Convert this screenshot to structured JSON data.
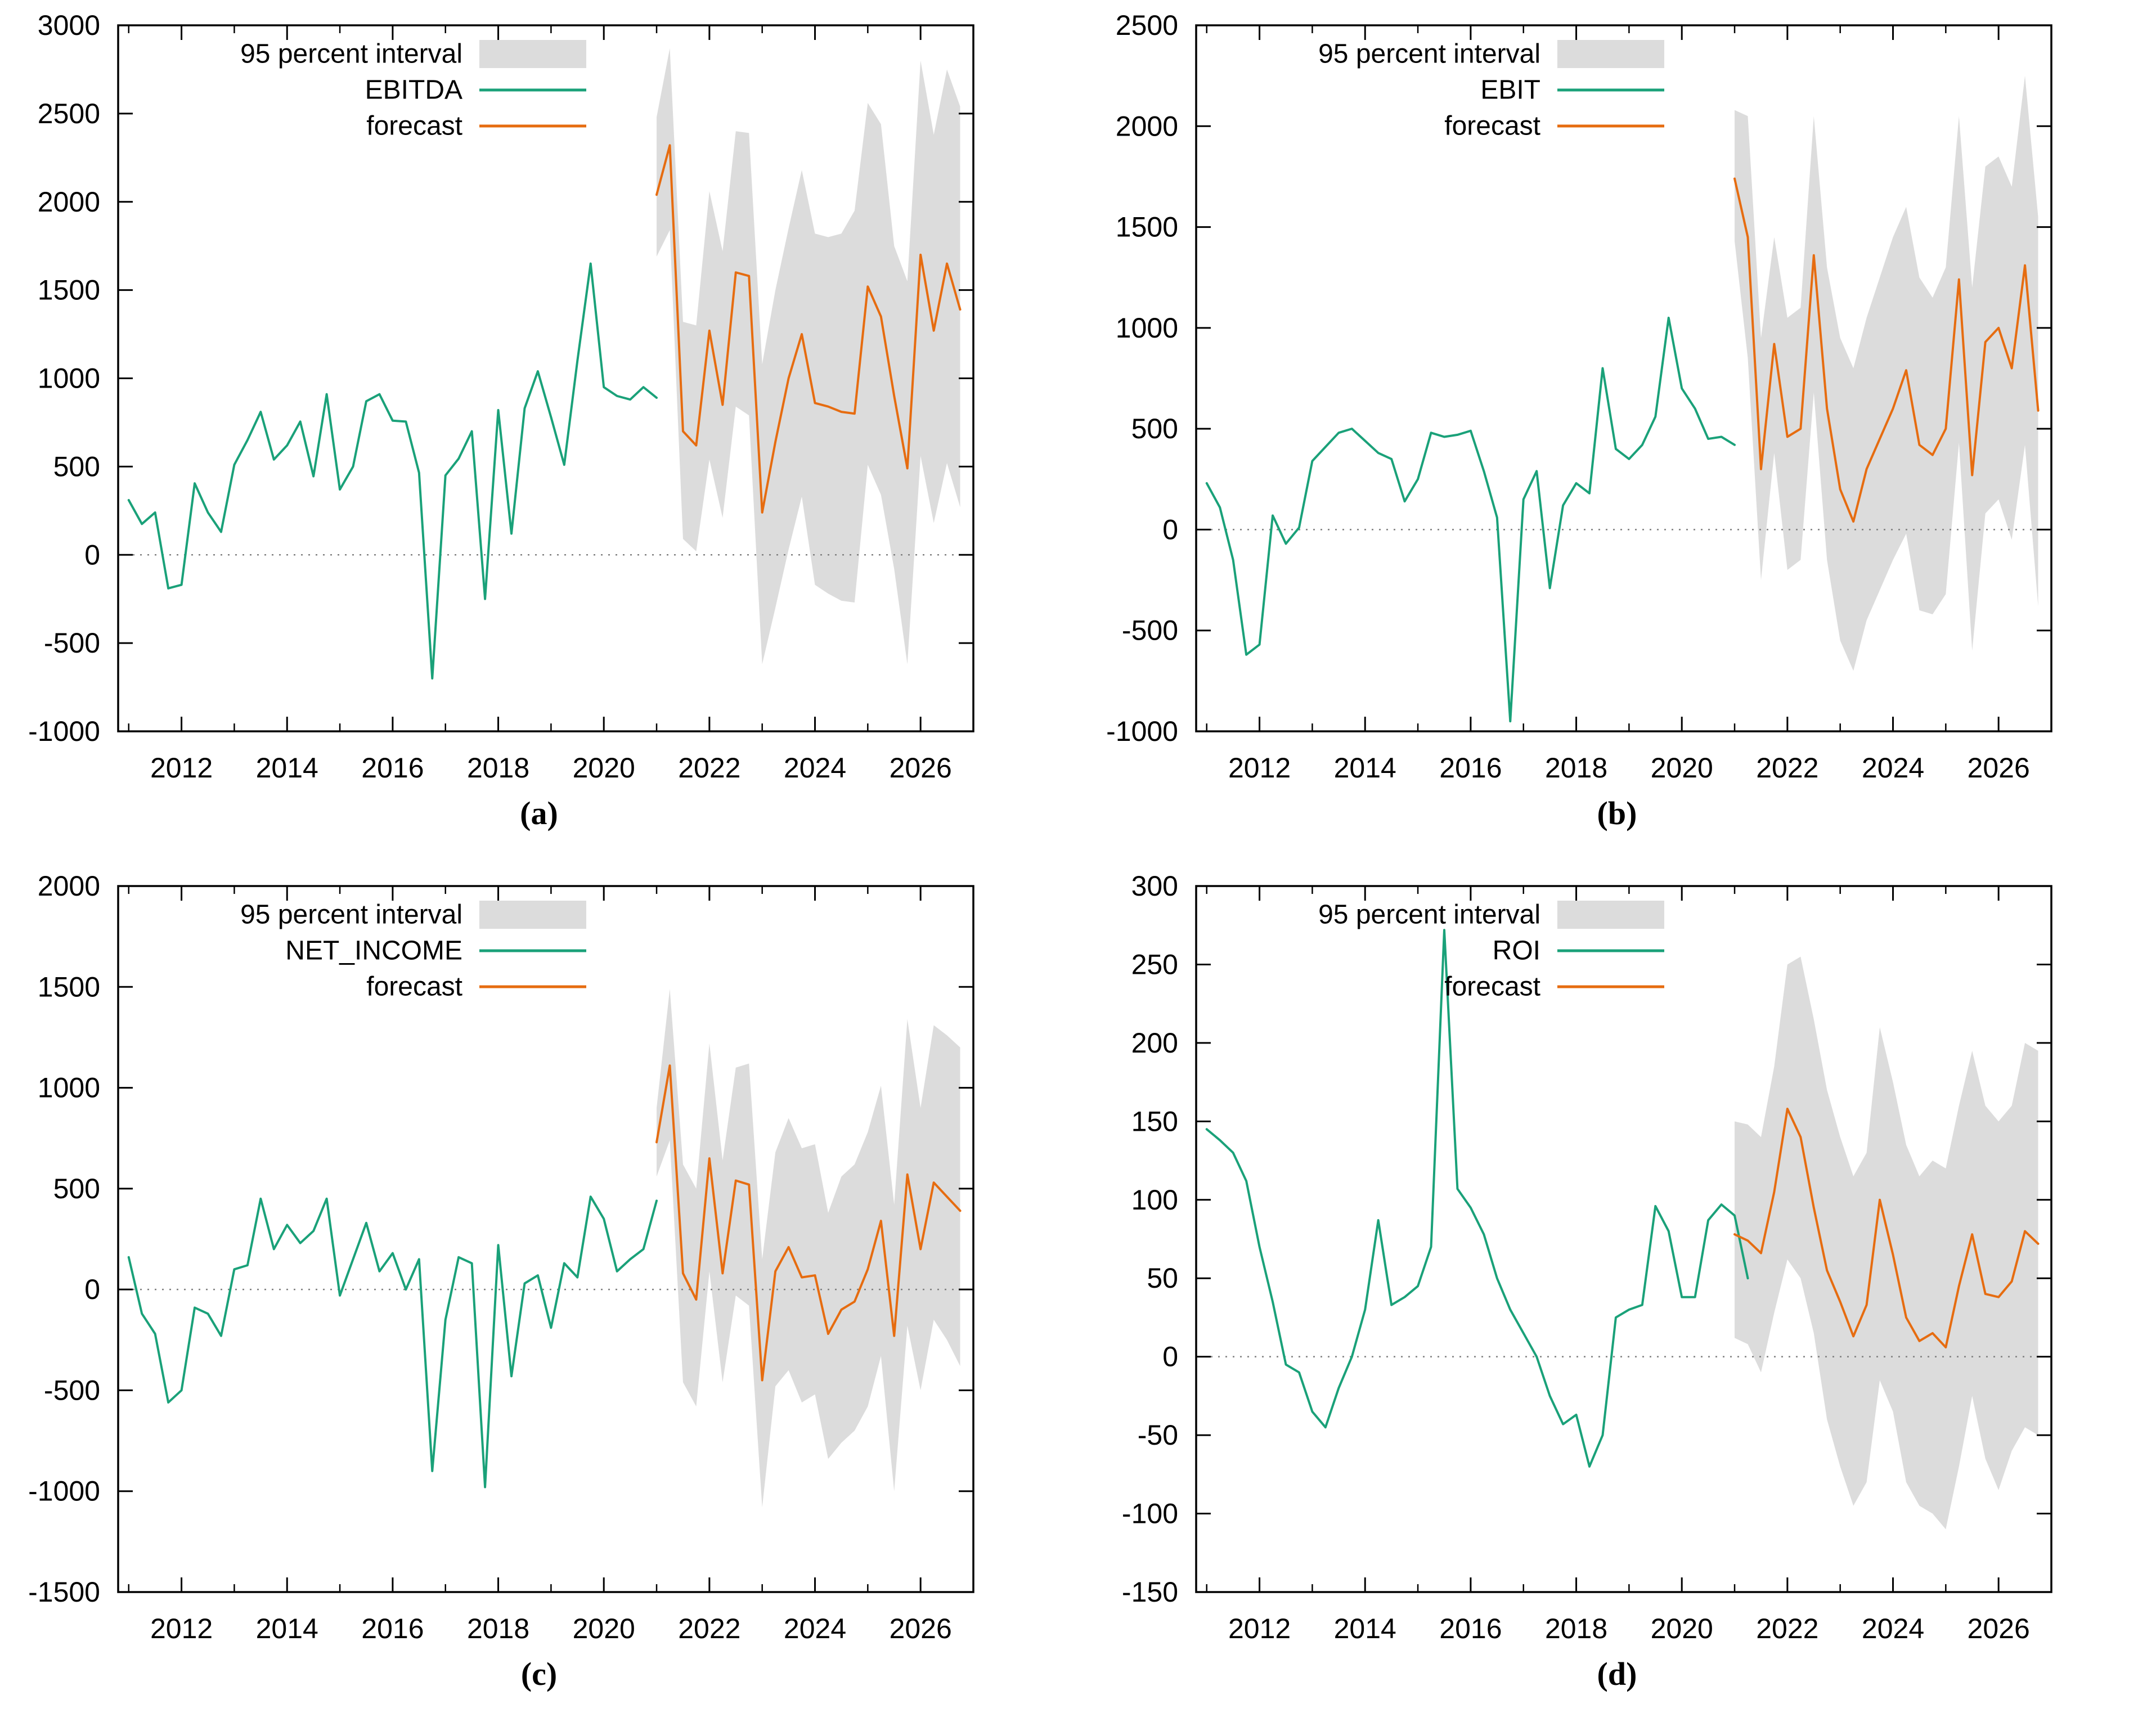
{
  "figure": {
    "background": "#ffffff"
  },
  "colors": {
    "history": "#1aa179",
    "forecast": "#e66c10",
    "band": "#dcdcdc",
    "axis": "#000000",
    "zero_line": "#808080",
    "text": "#000000"
  },
  "chart_data": [
    {
      "panel": "a",
      "type": "line",
      "caption": "(a)",
      "interval_label": "95 percent interval",
      "series_label": "EBITDA",
      "forecast_label": "forecast",
      "x_tick_labels": [
        "2012",
        "2014",
        "2016",
        "2018",
        "2020",
        "2022",
        "2024",
        "2026"
      ],
      "x_range": [
        2010.8,
        2027.0
      ],
      "ylim": [
        -1000,
        3000
      ],
      "y_step": 500,
      "x_start": 2011.0,
      "x_step": 0.25,
      "history": [
        310,
        175,
        240,
        -190,
        -170,
        405,
        240,
        130,
        510,
        650,
        810,
        540,
        620,
        755,
        445,
        910,
        370,
        500,
        870,
        910,
        760,
        755,
        465,
        -700,
        450,
        545,
        700,
        -250,
        820,
        120,
        830,
        1040,
        780,
        510,
        1100,
        1650,
        950,
        900,
        880,
        950,
        890
      ],
      "forecast_x_start": 2021.0,
      "forecast": [
        2040,
        2320,
        700,
        620,
        1270,
        850,
        1600,
        1580,
        240,
        640,
        1000,
        1250,
        860,
        840,
        810,
        800,
        1520,
        1350,
        900,
        490,
        1700,
        1270,
        1650,
        1390
      ],
      "band_upper": [
        2480,
        2870,
        1320,
        1300,
        2060,
        1720,
        2400,
        2390,
        1080,
        1500,
        1850,
        2180,
        1820,
        1800,
        1820,
        1950,
        2560,
        2440,
        1750,
        1550,
        2800,
        2380,
        2750,
        2540
      ],
      "band_lower": [
        1690,
        1840,
        90,
        20,
        540,
        210,
        840,
        790,
        -620,
        -300,
        30,
        330,
        -170,
        -220,
        -260,
        -270,
        510,
        340,
        -80,
        -620,
        560,
        180,
        520,
        270
      ]
    },
    {
      "panel": "b",
      "type": "line",
      "caption": "(b)",
      "interval_label": "95 percent interval",
      "series_label": "EBIT",
      "forecast_label": "forecast",
      "x_tick_labels": [
        "2012",
        "2014",
        "2016",
        "2018",
        "2020",
        "2022",
        "2024",
        "2026"
      ],
      "x_range": [
        2010.8,
        2027.0
      ],
      "ylim": [
        -1000,
        2500
      ],
      "y_step": 500,
      "x_start": 2011.0,
      "x_step": 0.25,
      "history": [
        230,
        110,
        -150,
        -620,
        -570,
        70,
        -70,
        10,
        340,
        410,
        480,
        500,
        440,
        380,
        350,
        140,
        250,
        480,
        460,
        470,
        490,
        290,
        60,
        -950,
        150,
        290,
        -290,
        120,
        230,
        180,
        800,
        400,
        350,
        420,
        560,
        1050,
        700,
        600,
        450,
        460,
        420
      ],
      "forecast_x_start": 2021.0,
      "forecast": [
        1740,
        1450,
        300,
        920,
        460,
        500,
        1360,
        600,
        200,
        40,
        300,
        450,
        600,
        790,
        420,
        370,
        500,
        1240,
        270,
        930,
        1000,
        800,
        1310,
        590
      ],
      "band_upper": [
        2080,
        2050,
        950,
        1450,
        1050,
        1100,
        2050,
        1300,
        950,
        800,
        1050,
        1250,
        1450,
        1600,
        1250,
        1150,
        1300,
        2050,
        1200,
        1800,
        1850,
        1700,
        2250,
        1550
      ],
      "band_lower": [
        1430,
        850,
        -250,
        380,
        -200,
        -150,
        680,
        -150,
        -550,
        -700,
        -450,
        -300,
        -150,
        -20,
        -400,
        -420,
        -320,
        430,
        -600,
        80,
        150,
        -50,
        420,
        -380
      ]
    },
    {
      "panel": "c",
      "type": "line",
      "caption": "(c)",
      "interval_label": "95 percent interval",
      "series_label": "NET_INCOME",
      "forecast_label": "forecast",
      "x_tick_labels": [
        "2012",
        "2014",
        "2016",
        "2018",
        "2020",
        "2022",
        "2024",
        "2026"
      ],
      "x_range": [
        2010.8,
        2027.0
      ],
      "ylim": [
        -1500,
        2000
      ],
      "y_step": 500,
      "x_start": 2011.0,
      "x_step": 0.25,
      "history": [
        160,
        -120,
        -220,
        -560,
        -500,
        -90,
        -120,
        -230,
        100,
        120,
        450,
        200,
        320,
        230,
        290,
        450,
        -30,
        150,
        330,
        90,
        180,
        0,
        150,
        -900,
        -150,
        160,
        130,
        -980,
        220,
        -430,
        30,
        70,
        -190,
        130,
        60,
        460,
        350,
        90,
        150,
        200,
        440
      ],
      "forecast_x_start": 2021.0,
      "forecast": [
        730,
        1110,
        80,
        -50,
        650,
        80,
        540,
        520,
        -450,
        90,
        210,
        60,
        70,
        -220,
        -100,
        -60,
        100,
        340,
        -230,
        570,
        200,
        530,
        460,
        390
      ],
      "band_upper": [
        900,
        1490,
        620,
        500,
        1220,
        640,
        1100,
        1120,
        150,
        680,
        850,
        700,
        720,
        380,
        560,
        620,
        780,
        1010,
        420,
        1340,
        900,
        1310,
        1260,
        1200
      ],
      "band_lower": [
        560,
        740,
        -460,
        -580,
        90,
        -460,
        -30,
        -80,
        -1080,
        -480,
        -400,
        -560,
        -520,
        -840,
        -760,
        -700,
        -580,
        -330,
        -1000,
        -180,
        -500,
        -150,
        -250,
        -380
      ]
    },
    {
      "panel": "d",
      "type": "line",
      "caption": "(d)",
      "interval_label": "95 percent interval",
      "series_label": "ROI",
      "forecast_label": "forecast",
      "x_tick_labels": [
        "2012",
        "2014",
        "2016",
        "2018",
        "2020",
        "2022",
        "2024",
        "2026"
      ],
      "x_range": [
        2010.8,
        2027.0
      ],
      "ylim": [
        -150,
        300
      ],
      "y_step": 50,
      "x_start": 2011.0,
      "x_step": 0.25,
      "history": [
        145,
        138,
        130,
        112,
        70,
        35,
        -5,
        -10,
        -35,
        -45,
        -20,
        0,
        30,
        87,
        33,
        38,
        45,
        70,
        272,
        107,
        95,
        78,
        50,
        30,
        15,
        0,
        -25,
        -43,
        -37,
        -70,
        -50,
        25,
        30,
        33,
        96,
        80,
        38,
        38,
        87,
        97,
        90,
        50
      ],
      "forecast_x_start": 2021.0,
      "forecast": [
        78,
        74,
        66,
        105,
        158,
        140,
        95,
        55,
        35,
        13,
        33,
        100,
        65,
        25,
        10,
        15,
        6,
        45,
        78,
        40,
        38,
        48,
        80,
        72
      ],
      "band_upper": [
        150,
        148,
        140,
        185,
        250,
        255,
        215,
        170,
        140,
        115,
        130,
        210,
        175,
        135,
        115,
        125,
        120,
        160,
        195,
        160,
        150,
        160,
        200,
        195
      ],
      "band_lower": [
        12,
        8,
        -10,
        28,
        62,
        50,
        15,
        -40,
        -70,
        -95,
        -80,
        -15,
        -35,
        -80,
        -95,
        -100,
        -110,
        -70,
        -25,
        -65,
        -85,
        -60,
        -45,
        -50
      ]
    }
  ]
}
